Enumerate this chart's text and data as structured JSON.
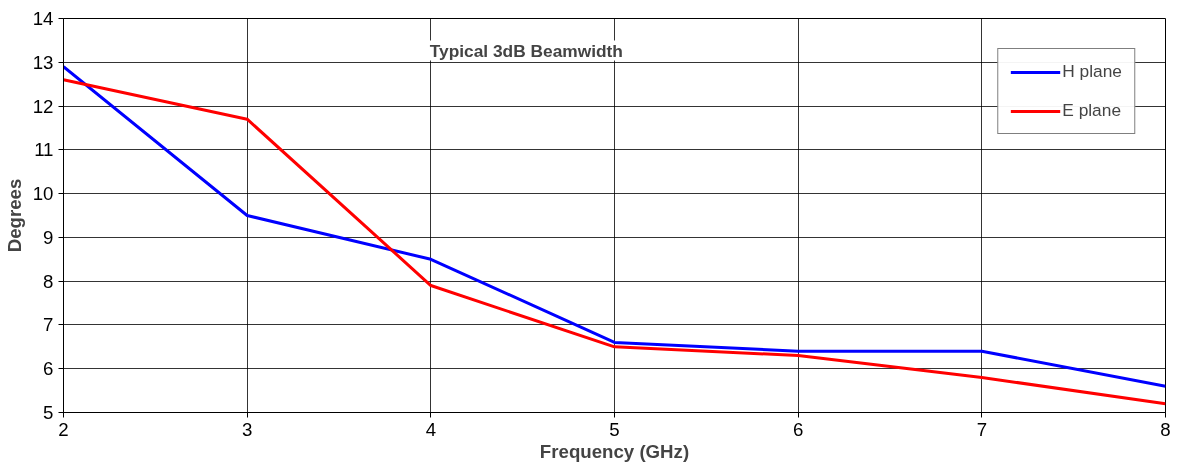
{
  "chart_data": {
    "type": "line",
    "title": "Typical 3dB Beamwidth",
    "xlabel": "Frequency (GHz)",
    "ylabel": "Degrees",
    "x": [
      2,
      3,
      4,
      5,
      6,
      7,
      8
    ],
    "series": [
      {
        "name": "H plane",
        "color": "#0000ff",
        "values": [
          12.9,
          9.5,
          8.5,
          6.6,
          6.4,
          6.4,
          5.6
        ]
      },
      {
        "name": "E plane",
        "color": "#ff0000",
        "values": [
          12.6,
          11.7,
          7.9,
          6.5,
          6.3,
          5.8,
          5.2
        ]
      }
    ],
    "xlim": [
      2,
      8
    ],
    "ylim": [
      5,
      14
    ],
    "xticks": [
      2,
      3,
      4,
      5,
      6,
      7,
      8
    ],
    "yticks": [
      5,
      6,
      7,
      8,
      9,
      10,
      11,
      12,
      13,
      14
    ],
    "grid": true,
    "legend": "top right",
    "marker": "none",
    "line_style": "solid"
  }
}
